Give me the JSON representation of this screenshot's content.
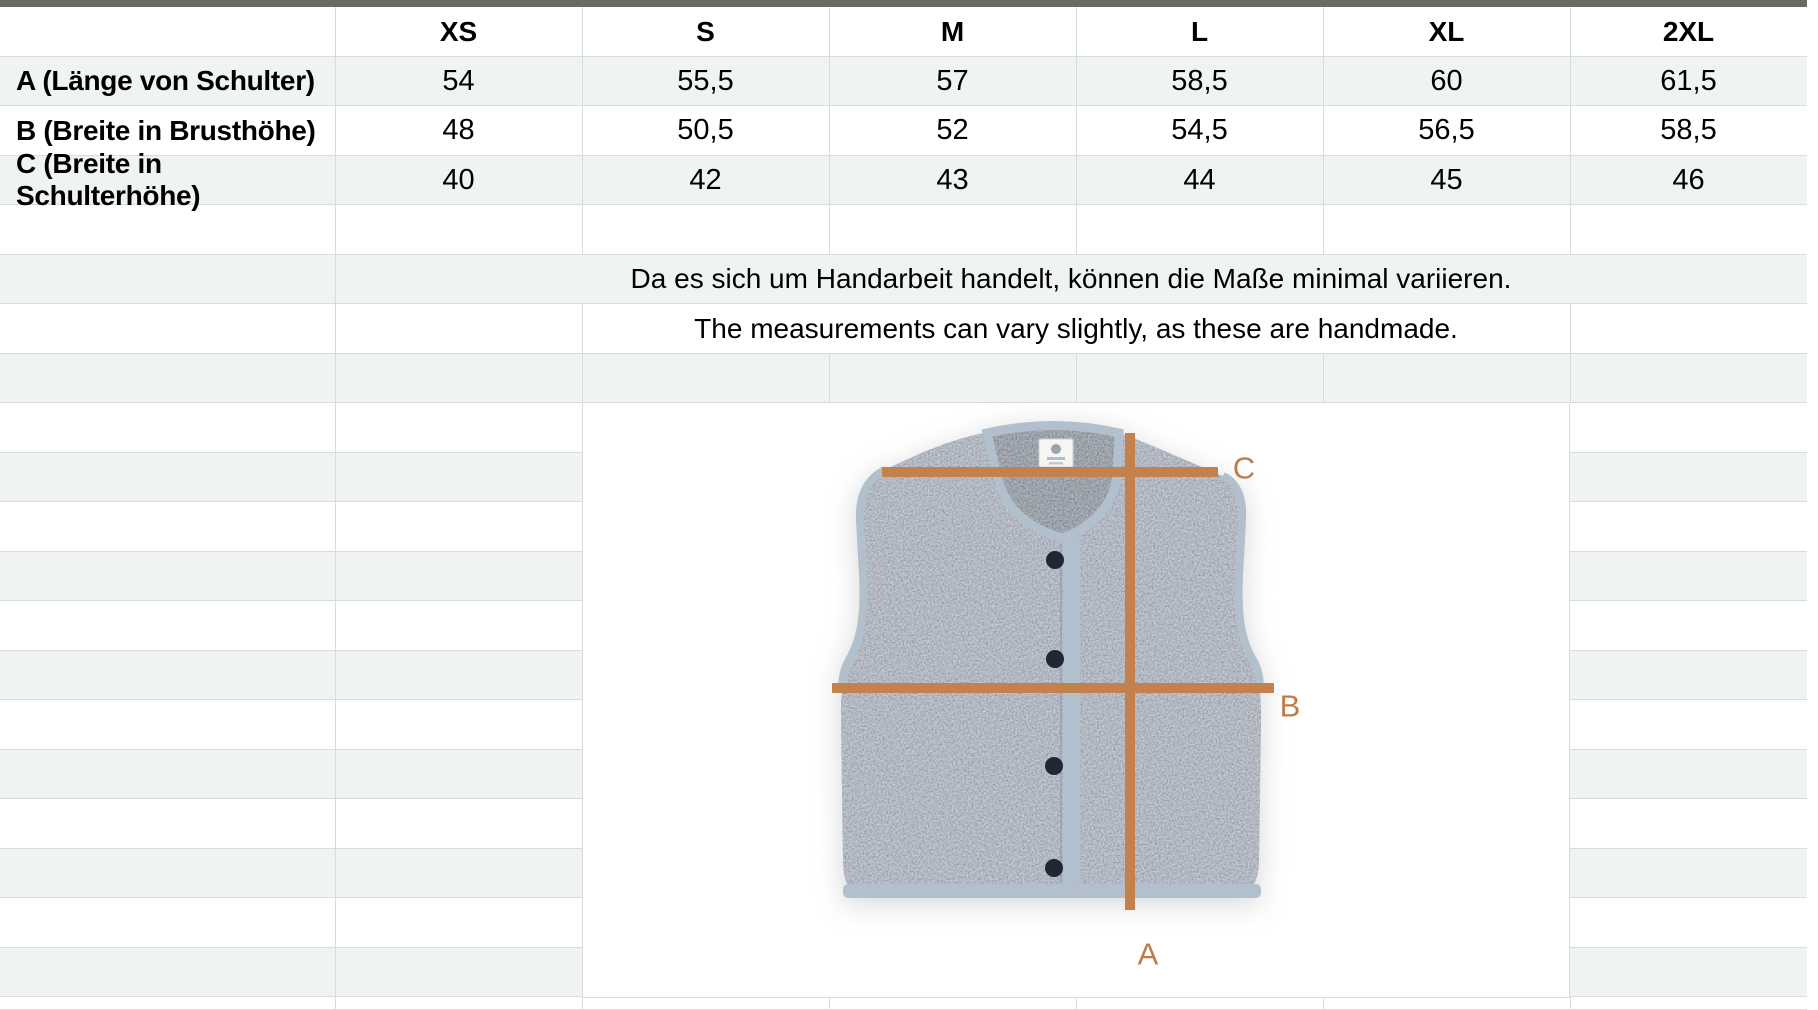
{
  "table": {
    "size_headers": [
      "XS",
      "S",
      "M",
      "L",
      "XL",
      "2XL"
    ],
    "rows": [
      {
        "label": "A (Länge von Schulter)",
        "values": [
          "54",
          "55,5",
          "57",
          "58,5",
          "60",
          "61,5"
        ]
      },
      {
        "label": "B (Breite in Brusthöhe)",
        "values": [
          "48",
          "50,5",
          "52",
          "54,5",
          "56,5",
          "58,5"
        ]
      },
      {
        "label": "C (Breite in Schulterhöhe)",
        "values": [
          "40",
          "42",
          "43",
          "44",
          "45",
          "46"
        ]
      }
    ]
  },
  "notes": {
    "de": "Da es sich um Handarbeit handelt, können die Maße minimal variieren.",
    "en": "The measurements can vary slightly, as these are handmade."
  },
  "diagram": {
    "labels": {
      "length": "A",
      "chest": "B",
      "shoulder": "C"
    },
    "line_color": "#c5814c",
    "label_color": "#bf7c49"
  },
  "colors": {
    "stripe": "#f0f4f1",
    "grid_line": "#d9ddda",
    "top_border": "#6c6862"
  }
}
